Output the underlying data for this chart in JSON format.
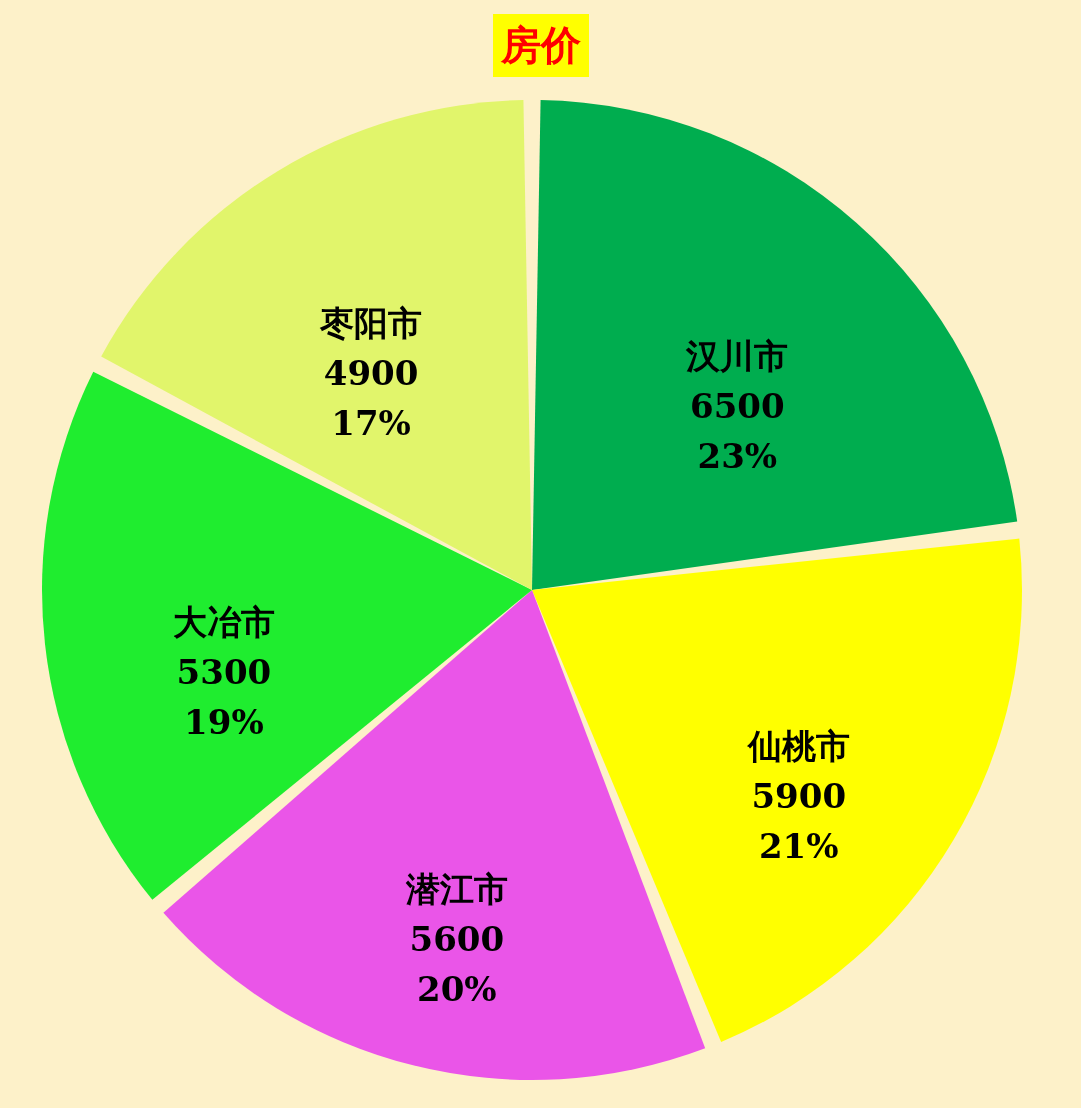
{
  "chart_data": {
    "type": "pie",
    "title": "房价",
    "categories": [
      "汉川市",
      "仙桃市",
      "潜江市",
      "大冶市",
      "枣阳市"
    ],
    "values": [
      6500,
      5900,
      5600,
      5300,
      4900
    ],
    "colors": [
      "#00ad4f",
      "#ffff00",
      "#ea55e8",
      "#1fed2f",
      "#e1f56b"
    ],
    "value_labels": [
      "6500\n23%",
      "5900\n21%",
      "5600\n20%",
      "5300\n19%",
      "4900\n17%"
    ],
    "legend": false
  }
}
